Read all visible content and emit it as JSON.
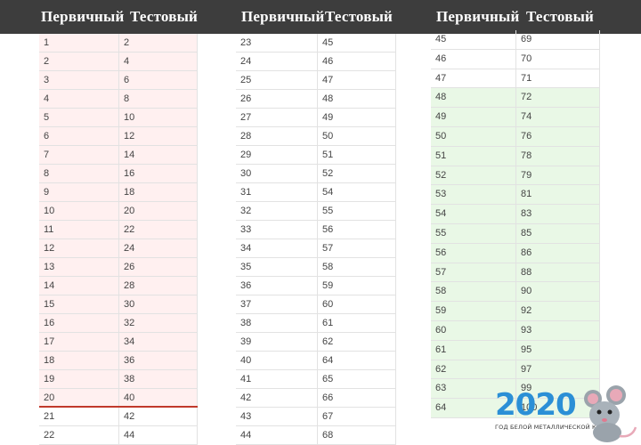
{
  "headers": {
    "col1": {
      "primary": "Первичный",
      "test": "Тестовый"
    },
    "col2": {
      "primary": "Первичный",
      "test": "Тестовый"
    },
    "col3": {
      "primary": "Первичный",
      "test": "Тестовый"
    }
  },
  "tables": [
    {
      "rows": [
        [
          "1",
          "2"
        ],
        [
          "2",
          "4"
        ],
        [
          "3",
          "6"
        ],
        [
          "4",
          "8"
        ],
        [
          "5",
          "10"
        ],
        [
          "6",
          "12"
        ],
        [
          "7",
          "14"
        ],
        [
          "8",
          "16"
        ],
        [
          "9",
          "18"
        ],
        [
          "10",
          "20"
        ],
        [
          "11",
          "22"
        ],
        [
          "12",
          "24"
        ],
        [
          "13",
          "26"
        ],
        [
          "14",
          "28"
        ],
        [
          "15",
          "30"
        ],
        [
          "16",
          "32"
        ],
        [
          "17",
          "34"
        ],
        [
          "18",
          "36"
        ],
        [
          "19",
          "38"
        ],
        [
          "20",
          "40"
        ],
        [
          "21",
          "42"
        ],
        [
          "22",
          "44"
        ]
      ],
      "highlight": "pink",
      "highlight_rows": 20
    },
    {
      "rows": [
        [
          "23",
          "45"
        ],
        [
          "24",
          "46"
        ],
        [
          "25",
          "47"
        ],
        [
          "26",
          "48"
        ],
        [
          "27",
          "49"
        ],
        [
          "28",
          "50"
        ],
        [
          "29",
          "51"
        ],
        [
          "30",
          "52"
        ],
        [
          "31",
          "54"
        ],
        [
          "32",
          "55"
        ],
        [
          "33",
          "56"
        ],
        [
          "34",
          "57"
        ],
        [
          "35",
          "58"
        ],
        [
          "36",
          "59"
        ],
        [
          "37",
          "60"
        ],
        [
          "38",
          "61"
        ],
        [
          "39",
          "62"
        ],
        [
          "40",
          "64"
        ],
        [
          "41",
          "65"
        ],
        [
          "42",
          "66"
        ],
        [
          "43",
          "67"
        ],
        [
          "44",
          "68"
        ]
      ],
      "highlight": "none",
      "highlight_rows": 0
    },
    {
      "rows": [
        [
          "45",
          "69"
        ],
        [
          "46",
          "70"
        ],
        [
          "47",
          "71"
        ],
        [
          "48",
          "72"
        ],
        [
          "49",
          "74"
        ],
        [
          "50",
          "76"
        ],
        [
          "51",
          "78"
        ],
        [
          "52",
          "79"
        ],
        [
          "53",
          "81"
        ],
        [
          "54",
          "83"
        ],
        [
          "55",
          "85"
        ],
        [
          "56",
          "86"
        ],
        [
          "57",
          "88"
        ],
        [
          "58",
          "90"
        ],
        [
          "59",
          "92"
        ],
        [
          "60",
          "93"
        ],
        [
          "61",
          "95"
        ],
        [
          "62",
          "97"
        ],
        [
          "63",
          "99"
        ],
        [
          "64",
          "100"
        ]
      ],
      "highlight": "green",
      "highlight_from": 3
    }
  ],
  "colors": {
    "header_bg": "#3d3d3d",
    "pink_fill": "#fff0f0",
    "green_fill": "#e9f8e6",
    "divider_red": "#c0392b",
    "logo_blue": "#2b8fd6"
  },
  "logo": {
    "year": "2020",
    "subtitle": "ГОД БЕЛОЙ МЕТАЛЛИЧЕСКОЙ КРЫСЫ",
    "icon": "mouse-icon"
  }
}
